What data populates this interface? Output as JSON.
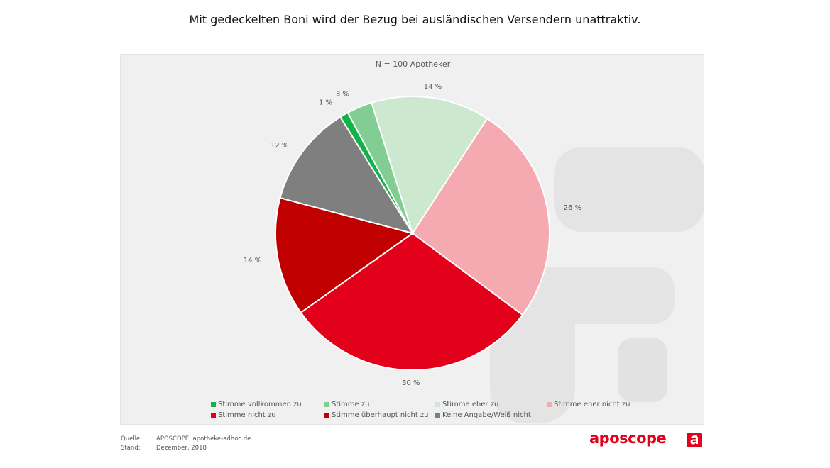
{
  "title": "Mit gedeckelten Boni wird der Bezug bei ausländischen Versendern unattraktiv.",
  "chart_data": {
    "type": "pie",
    "title": "Mit gedeckelten Boni wird der Bezug bei ausländischen Versendern unattraktiv.",
    "subtitle": "N = 100 Apotheker",
    "start_angle_deg": 33,
    "direction": "clockwise",
    "slices": [
      {
        "label": "Stimme eher nicht zu",
        "value": 26,
        "value_label": "26 %",
        "color": "#f5aab2"
      },
      {
        "label": "Stimme nicht zu",
        "value": 30,
        "value_label": "30 %",
        "color": "#e2001a"
      },
      {
        "label": "Stimme überhaupt nicht zu",
        "value": 14,
        "value_label": "14 %",
        "color": "#c00000"
      },
      {
        "label": "Keine Angabe/Weiß nicht",
        "value": 12,
        "value_label": "12 %",
        "color": "#7f7f7f"
      },
      {
        "label": "Stimme vollkommen zu",
        "value": 1,
        "value_label": "1 %",
        "color": "#11b24a"
      },
      {
        "label": "Stimme zu",
        "value": 3,
        "value_label": "3 %",
        "color": "#82cd92"
      },
      {
        "label": "Stimme eher zu",
        "value": 14,
        "value_label": "14 %",
        "color": "#cce8cf"
      }
    ],
    "legend": {
      "placement": "bottom",
      "rows": [
        [
          {
            "label": "Stimme vollkommen zu",
            "color": "#11b24a"
          },
          {
            "label": "Stimme zu",
            "color": "#82cd92"
          },
          {
            "label": "Stimme eher zu",
            "color": "#cce8cf"
          },
          {
            "label": "Stimme eher nicht zu",
            "color": "#f5aab2"
          }
        ],
        [
          {
            "label": "Stimme nicht zu",
            "color": "#e2001a"
          },
          {
            "label": "Stimme überhaupt nicht zu",
            "color": "#c00000"
          },
          {
            "label": "Keine Angabe/Weiß nicht",
            "color": "#7f7f7f"
          }
        ]
      ]
    }
  },
  "footer": {
    "source_label": "Quelle:",
    "source_value": "APOSCOPE, apotheke-adhoc.de",
    "date_label": "Stand:",
    "date_value": "Dezember, 2018",
    "brand": "aposcope",
    "brand_color": "#e2001a"
  }
}
